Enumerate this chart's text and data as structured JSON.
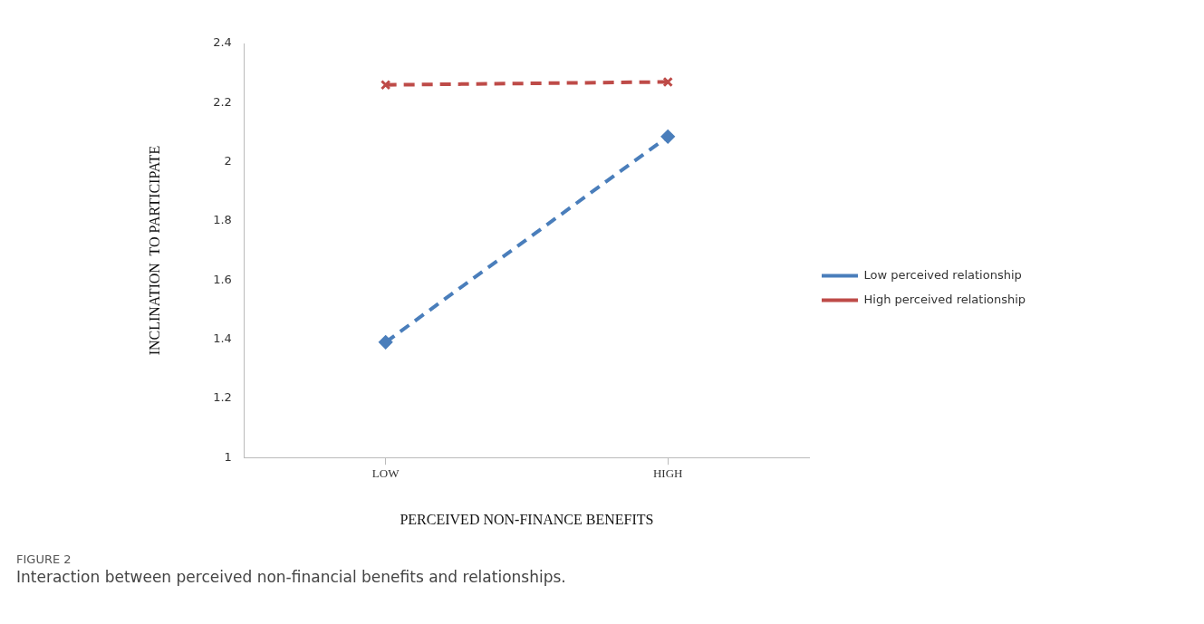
{
  "chart_data": {
    "type": "line",
    "xlabel": "PERCEIVED NON-FINANCE BENEFITS",
    "ylabel": "INCLINATION  TO PARTICIPATE",
    "categories": [
      "LOW",
      "HIGH"
    ],
    "series": [
      {
        "name": "Low perceived relationship",
        "color": "#4a7ebb",
        "values": [
          1.39,
          2.085
        ],
        "marker": "diamond",
        "line_style": "dashed"
      },
      {
        "name": "High perceived relationship",
        "color": "#be4b48",
        "values": [
          2.26,
          2.27
        ],
        "marker": "cross",
        "line_style": "dashed"
      }
    ],
    "ylim": [
      1,
      2.4
    ],
    "yticks": [
      1,
      1.2,
      1.4,
      1.6,
      1.8,
      2,
      2.2,
      2.4
    ],
    "grid": false,
    "legend": "right",
    "annotations": [
      "FIGURE 2",
      "Interaction between perceived non-financial benefits and relationships."
    ]
  }
}
